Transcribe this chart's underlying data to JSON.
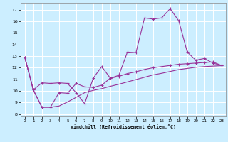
{
  "xlabel": "Windchill (Refroidissement éolien,°C)",
  "background_color": "#cceeff",
  "line_color": "#993399",
  "grid_color": "#ffffff",
  "xlim": [
    -0.5,
    23.5
  ],
  "ylim": [
    7.8,
    17.6
  ],
  "yticks": [
    8,
    9,
    10,
    11,
    12,
    13,
    14,
    15,
    16,
    17
  ],
  "xticks": [
    0,
    1,
    2,
    3,
    4,
    5,
    6,
    7,
    8,
    9,
    10,
    11,
    12,
    13,
    14,
    15,
    16,
    17,
    18,
    19,
    20,
    21,
    22,
    23
  ],
  "series1_x": [
    0,
    1,
    2,
    3,
    4,
    5,
    6,
    7,
    8,
    9,
    10,
    11,
    12,
    13,
    14,
    15,
    16,
    17,
    18,
    19,
    20,
    21,
    22,
    23
  ],
  "series1_y": [
    12.9,
    10.1,
    10.7,
    10.65,
    10.7,
    10.65,
    9.85,
    8.9,
    11.1,
    12.1,
    11.1,
    11.35,
    13.35,
    13.3,
    16.3,
    16.2,
    16.3,
    17.1,
    16.05,
    13.35,
    12.65,
    12.8,
    12.4,
    12.2
  ],
  "series2_x": [
    0,
    1,
    2,
    3,
    4,
    5,
    6,
    7,
    8,
    9,
    10,
    11,
    12,
    13,
    14,
    15,
    16,
    17,
    18,
    19,
    20,
    21,
    22,
    23
  ],
  "series2_y": [
    12.9,
    10.1,
    8.6,
    8.6,
    9.85,
    9.8,
    10.65,
    10.35,
    10.3,
    10.5,
    11.1,
    11.25,
    11.5,
    11.65,
    11.85,
    12.0,
    12.1,
    12.2,
    12.3,
    12.35,
    12.4,
    12.45,
    12.5,
    12.2
  ],
  "series3_x": [
    0,
    1,
    2,
    3,
    4,
    5,
    6,
    7,
    8,
    9,
    10,
    11,
    12,
    13,
    14,
    15,
    16,
    17,
    18,
    19,
    20,
    21,
    22,
    23
  ],
  "series3_y": [
    12.9,
    10.05,
    8.6,
    8.6,
    8.7,
    9.05,
    9.45,
    9.85,
    10.05,
    10.2,
    10.4,
    10.58,
    10.78,
    10.98,
    11.18,
    11.38,
    11.52,
    11.68,
    11.84,
    11.94,
    12.04,
    12.1,
    12.14,
    12.18
  ]
}
